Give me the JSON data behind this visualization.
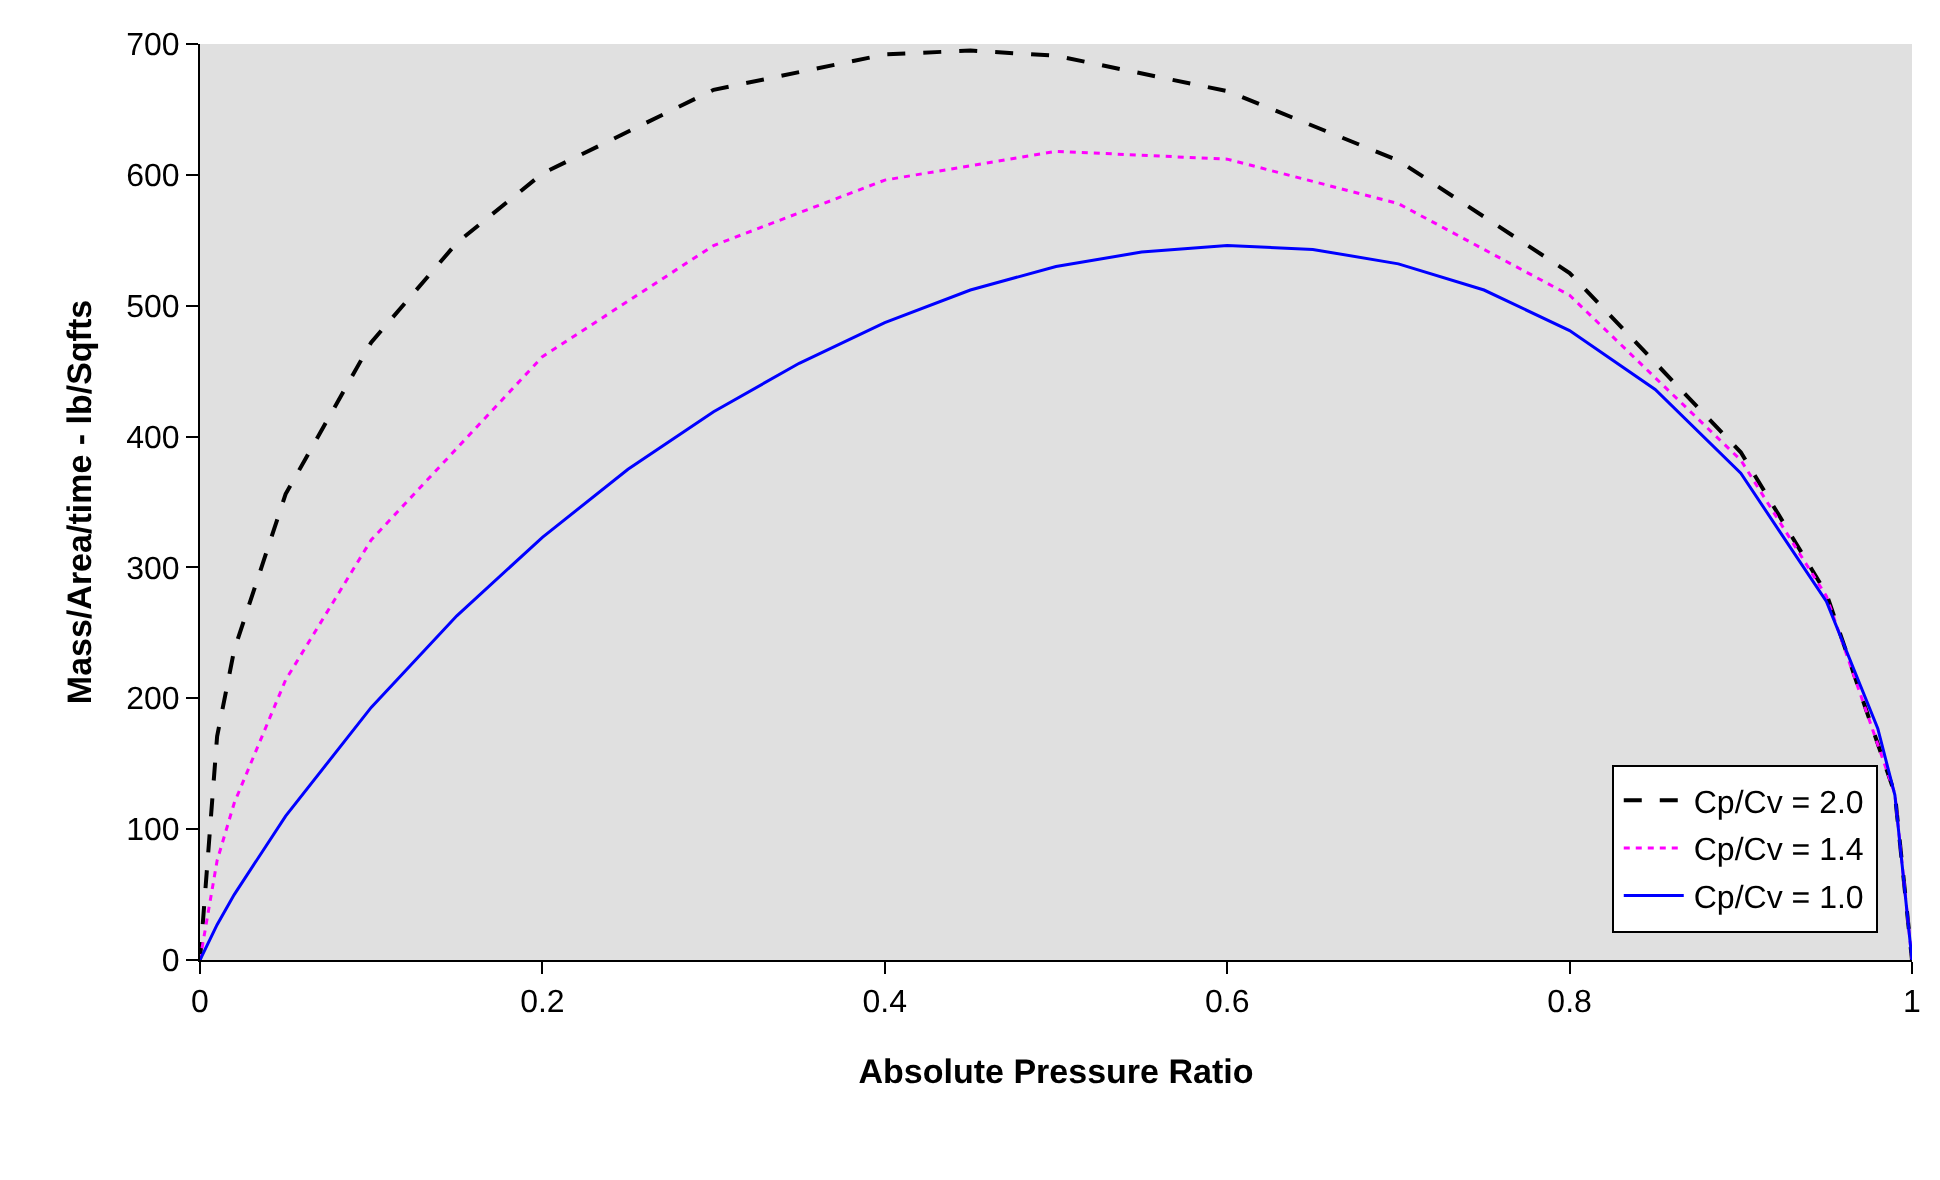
{
  "chart_data": {
    "type": "line",
    "xlabel": "Absolute Pressure Ratio",
    "ylabel": "Mass/Area/time - lb/Sqfts",
    "xlim": [
      0,
      1
    ],
    "ylim": [
      0,
      700
    ],
    "xticks": [
      0,
      0.2,
      0.4,
      0.6,
      0.8,
      1
    ],
    "yticks": [
      0,
      100,
      200,
      300,
      400,
      500,
      600,
      700
    ],
    "grid": false,
    "legend": "bottom right",
    "marker": "none",
    "series": [
      {
        "name": "Cp/Cv = 2.0",
        "color": "#000000",
        "line_style": "dashed",
        "x": [
          0,
          0.01,
          0.02,
          0.05,
          0.1,
          0.15,
          0.2,
          0.3,
          0.4,
          0.45,
          0.5,
          0.6,
          0.7,
          0.8,
          0.9,
          0.95,
          0.99,
          1
        ],
        "values": [
          0,
          171,
          237,
          356,
          472,
          548,
          601,
          665,
          692,
          695,
          691,
          664,
          611,
          525,
          388,
          280,
          127,
          0
        ]
      },
      {
        "name": "Cp/Cv = 1.4",
        "color": "#ff00ff",
        "line_style": "dotted",
        "x": [
          0,
          0.01,
          0.02,
          0.05,
          0.1,
          0.2,
          0.3,
          0.4,
          0.5,
          0.6,
          0.7,
          0.8,
          0.9,
          0.95,
          0.99,
          1
        ],
        "values": [
          0,
          76,
          120,
          214,
          321,
          461,
          546,
          596,
          618,
          612,
          578,
          508,
          382,
          278,
          127,
          0
        ]
      },
      {
        "name": "Cp/Cv = 1.0",
        "color": "#0000ff",
        "line_style": "solid",
        "x": [
          0,
          0.01,
          0.02,
          0.05,
          0.1,
          0.15,
          0.2,
          0.25,
          0.3,
          0.35,
          0.4,
          0.45,
          0.5,
          0.55,
          0.6,
          0.65,
          0.7,
          0.75,
          0.8,
          0.85,
          0.9,
          0.95,
          0.98,
          0.99,
          1
        ],
        "values": [
          0,
          27,
          50,
          110,
          193,
          263,
          323,
          375,
          419,
          456,
          487,
          512,
          530,
          541,
          546,
          543,
          532,
          512,
          481,
          436,
          372,
          274,
          177,
          126,
          0
        ]
      }
    ]
  }
}
